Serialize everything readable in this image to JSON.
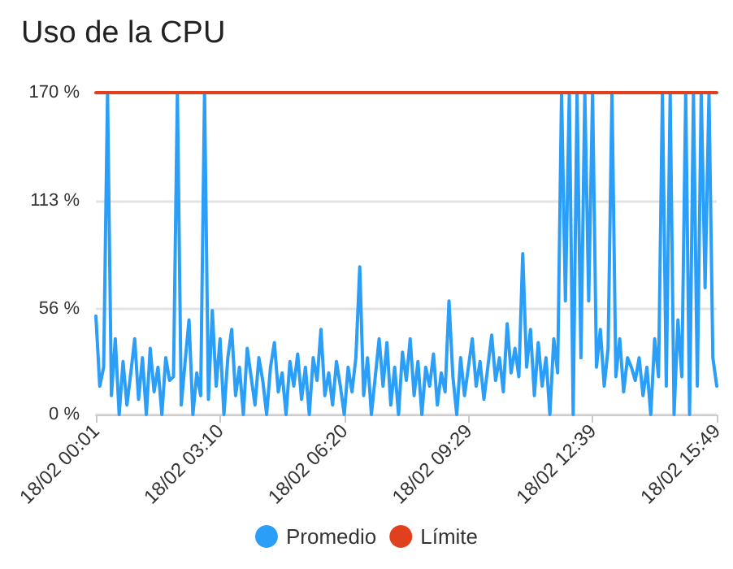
{
  "chart_data": {
    "type": "line",
    "title": "Uso de la CPU",
    "categories": [
      "18/02 00:01",
      null,
      null,
      null,
      null,
      null,
      null,
      null,
      null,
      null,
      null,
      null,
      null,
      null,
      null,
      null,
      null,
      null,
      null,
      null,
      null,
      null,
      null,
      null,
      null,
      null,
      null,
      null,
      null,
      null,
      null,
      null,
      "18/02 03:10",
      null,
      null,
      null,
      null,
      null,
      null,
      null,
      null,
      null,
      null,
      null,
      null,
      null,
      null,
      null,
      null,
      null,
      null,
      null,
      null,
      null,
      null,
      null,
      null,
      null,
      null,
      null,
      null,
      null,
      null,
      null,
      "18/02 06:20",
      null,
      null,
      null,
      null,
      null,
      null,
      null,
      null,
      null,
      null,
      null,
      null,
      null,
      null,
      null,
      null,
      null,
      null,
      null,
      null,
      null,
      null,
      null,
      null,
      null,
      null,
      null,
      null,
      null,
      null,
      null,
      "18/02 09:29",
      null,
      null,
      null,
      null,
      null,
      null,
      null,
      null,
      null,
      null,
      null,
      null,
      null,
      null,
      null,
      null,
      null,
      null,
      null,
      null,
      null,
      null,
      null,
      null,
      null,
      null,
      null,
      null,
      null,
      null,
      null,
      "18/02 12:39",
      null,
      null,
      null,
      null,
      null,
      null,
      null,
      null,
      null,
      null,
      null,
      null,
      null,
      null,
      null,
      null,
      null,
      null,
      null,
      null,
      null,
      null,
      null,
      null,
      null,
      null,
      null,
      null,
      null,
      null,
      null,
      "18/02 15:49"
    ],
    "ylim": [
      0,
      170
    ],
    "yticks": [
      {
        "value": 0,
        "label": "0 %"
      },
      {
        "value": 56,
        "label": "56 %"
      },
      {
        "value": 113,
        "label": "113 %"
      },
      {
        "value": 170,
        "label": "170 %"
      }
    ],
    "grid": "y",
    "legend": "bottom",
    "marker": "none",
    "line_style": "solid",
    "series": [
      {
        "name": "Promedio",
        "color": "#2b9ef8",
        "values": [
          52,
          15,
          25,
          170,
          10,
          40,
          0,
          28,
          5,
          22,
          40,
          8,
          30,
          0,
          35,
          12,
          25,
          0,
          30,
          18,
          20,
          170,
          5,
          28,
          50,
          0,
          22,
          10,
          170,
          8,
          55,
          15,
          40,
          0,
          30,
          45,
          10,
          25,
          0,
          35,
          20,
          5,
          30,
          18,
          0,
          25,
          38,
          12,
          22,
          0,
          28,
          15,
          32,
          8,
          25,
          0,
          30,
          18,
          45,
          10,
          22,
          5,
          28,
          15,
          0,
          25,
          12,
          30,
          78,
          10,
          30,
          0,
          20,
          40,
          15,
          38,
          5,
          25,
          0,
          33,
          18,
          40,
          10,
          28,
          0,
          25,
          15,
          32,
          5,
          22,
          12,
          60,
          20,
          0,
          30,
          10,
          25,
          40,
          15,
          28,
          8,
          25,
          42,
          18,
          30,
          12,
          48,
          22,
          35,
          20,
          85,
          25,
          45,
          10,
          38,
          15,
          30,
          0,
          40,
          22,
          170,
          60,
          170,
          0,
          170,
          30,
          170,
          60,
          170,
          25,
          45,
          15,
          35,
          170,
          20,
          40,
          12,
          30,
          25,
          18,
          30,
          10,
          25,
          0,
          40,
          20,
          170,
          15,
          170,
          0,
          50,
          20,
          170,
          0,
          170,
          15,
          170,
          67,
          170,
          30,
          15
        ]
      },
      {
        "name": "Límite",
        "color": "#e0401e",
        "values": [
          170,
          170,
          170,
          170,
          170,
          170,
          170,
          170,
          170,
          170,
          170,
          170,
          170,
          170,
          170,
          170,
          170,
          170,
          170,
          170,
          170,
          170,
          170,
          170,
          170,
          170,
          170,
          170,
          170,
          170,
          170,
          170,
          170,
          170,
          170,
          170,
          170,
          170,
          170,
          170,
          170,
          170,
          170,
          170,
          170,
          170,
          170,
          170,
          170,
          170,
          170,
          170,
          170,
          170,
          170,
          170,
          170,
          170,
          170,
          170,
          170,
          170,
          170,
          170,
          170,
          170,
          170,
          170,
          170,
          170,
          170,
          170,
          170,
          170,
          170,
          170,
          170,
          170,
          170,
          170,
          170,
          170,
          170,
          170,
          170,
          170,
          170,
          170,
          170,
          170,
          170,
          170,
          170,
          170,
          170,
          170,
          170,
          170,
          170,
          170,
          170,
          170,
          170,
          170,
          170,
          170,
          170,
          170,
          170,
          170,
          170,
          170,
          170,
          170,
          170,
          170,
          170,
          170,
          170,
          170,
          170,
          170,
          170,
          170,
          170,
          170,
          170,
          170,
          170,
          170,
          170,
          170,
          170,
          170,
          170,
          170,
          170,
          170,
          170,
          170,
          170,
          170,
          170,
          170,
          170,
          170,
          170,
          170,
          170,
          170,
          170,
          170,
          170,
          170,
          170,
          170,
          170,
          170,
          170,
          170,
          170
        ]
      }
    ]
  }
}
